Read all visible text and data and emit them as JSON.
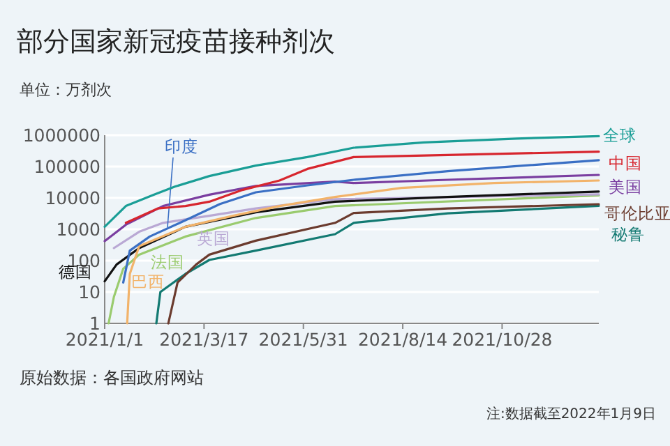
{
  "chart_data": {
    "type": "line",
    "title": "部分国家新冠疫苗接种剂次",
    "subtitle": "单位：万剂次",
    "annotations": [
      "原始数据：各国政府网站",
      "注:数据截至2022年1月9日"
    ],
    "log": true,
    "grid": "y",
    "xlim": [
      "2021-01-01",
      "2022-01-09"
    ],
    "xticks": [
      {
        "value": "2021-01-01",
        "label": "2021/1/1"
      },
      {
        "value": "2021-03-17",
        "label": "2021/3/17"
      },
      {
        "value": "2021-05-31",
        "label": "2021/5/31"
      },
      {
        "value": "2021-08-14",
        "label": "2021/8/14"
      },
      {
        "value": "2021-10-28",
        "label": "2021/10/28"
      }
    ],
    "ylim": [
      1,
      1000000
    ],
    "yticks": [
      1,
      10,
      100,
      1000,
      10000,
      100000,
      1000000
    ],
    "series": [
      {
        "name": "全球",
        "color": "#1a9e96",
        "x": [
          "2021-01-01",
          "2021-01-17",
          "2021-02-07",
          "2021-02-23",
          "2021-03-21",
          "2021-04-25",
          "2021-06-03",
          "2021-07-08",
          "2021-08-30",
          "2021-11-08",
          "2022-01-09"
        ],
        "values": [
          1200,
          5500,
          12600,
          23000,
          50000,
          107000,
          200000,
          400000,
          590000,
          780000,
          930000
        ]
      },
      {
        "name": "中国",
        "color": "#d7262e",
        "x": [
          "2021-01-17",
          "2021-02-10",
          "2021-03-03",
          "2021-03-21",
          "2021-04-15",
          "2021-05-13",
          "2021-06-03",
          "2021-07-08",
          "2021-09-17",
          "2022-01-09"
        ],
        "values": [
          1600,
          4600,
          5500,
          7600,
          18000,
          36000,
          84000,
          200000,
          235000,
          300000
        ]
      },
      {
        "name": "印度",
        "color": "#3a6fc4",
        "x": [
          "2021-01-15",
          "2021-01-20",
          "2021-02-04",
          "2021-03-03",
          "2021-03-29",
          "2021-04-25",
          "2021-06-03",
          "2021-07-08",
          "2021-09-17",
          "2022-01-09"
        ],
        "values": [
          20,
          210,
          590,
          1950,
          6400,
          15000,
          25000,
          38000,
          71000,
          160000
        ]
      },
      {
        "name": "美国",
        "color": "#7a3ea0",
        "x": [
          "2021-01-01",
          "2021-01-17",
          "2021-02-14",
          "2021-03-21",
          "2021-04-25",
          "2021-06-24",
          "2021-07-08",
          "2021-09-17",
          "2022-01-09"
        ],
        "values": [
          420,
          1400,
          5500,
          12700,
          24000,
          33000,
          30000,
          38000,
          54000
        ]
      },
      {
        "name": "巴西",
        "color": "#f2b36a",
        "x": [
          "2021-01-18",
          "2021-01-20",
          "2021-01-27",
          "2021-03-03",
          "2021-04-08",
          "2021-05-13",
          "2021-06-24",
          "2021-08-13",
          "2021-10-22",
          "2022-01-09"
        ],
        "values": [
          1,
          38,
          290,
          1200,
          2700,
          5500,
          10700,
          21000,
          30000,
          36000
        ]
      },
      {
        "name": "德国",
        "color": "#111111",
        "x": [
          "2021-01-01",
          "2021-01-10",
          "2021-01-27",
          "2021-03-03",
          "2021-04-25",
          "2021-06-24",
          "2021-09-17",
          "2022-01-09"
        ],
        "values": [
          22,
          75,
          250,
          1200,
          3500,
          7600,
          10700,
          16000
        ]
      },
      {
        "name": "英国",
        "color": "#b9a8d4",
        "x": [
          "2021-01-08",
          "2021-01-27",
          "2021-02-14",
          "2021-03-21",
          "2021-04-25",
          "2021-06-24",
          "2022-01-09"
        ],
        "values": [
          250,
          830,
          1600,
          2700,
          4600,
          9100,
          13000
        ]
      },
      {
        "name": "法国",
        "color": "#9acb6e",
        "x": [
          "2021-01-04",
          "2021-01-08",
          "2021-01-15",
          "2021-01-27",
          "2021-03-03",
          "2021-04-25",
          "2021-06-24",
          "2022-01-09"
        ],
        "values": [
          1,
          7,
          55,
          155,
          590,
          2300,
          5500,
          12000
        ]
      },
      {
        "name": "哥伦比亚",
        "color": "#6b3b2e",
        "x": [
          "2021-02-18",
          "2021-02-25",
          "2021-03-11",
          "2021-03-21",
          "2021-04-25",
          "2021-06-24",
          "2021-07-08",
          "2021-09-17",
          "2022-01-09"
        ],
        "values": [
          1,
          20,
          75,
          155,
          430,
          1600,
          3300,
          4600,
          6300
        ]
      },
      {
        "name": "秘鲁",
        "color": "#137a72",
        "x": [
          "2021-02-09",
          "2021-02-12",
          "2021-03-03",
          "2021-03-21",
          "2021-04-25",
          "2021-06-24",
          "2021-07-08",
          "2021-09-17",
          "2022-01-09"
        ],
        "values": [
          1,
          10,
          38,
          105,
          210,
          700,
          1600,
          3200,
          5600
        ]
      }
    ]
  }
}
